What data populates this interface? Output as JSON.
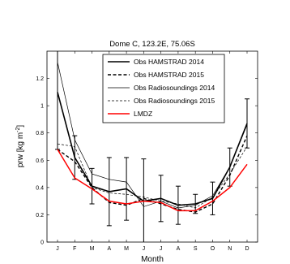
{
  "chart_data": {
    "type": "line",
    "title": "Dome C, 123.2E, 75.06S",
    "xlabel": "Month",
    "ylabel": "prw [kg m",
    "ylabel_sup": "-2",
    "ylabel_end": "]",
    "categories": [
      "J",
      "F",
      "M",
      "A",
      "M",
      "J",
      "J",
      "A",
      "S",
      "O",
      "N",
      "D"
    ],
    "ylim": [
      0,
      1.4
    ],
    "yticks": [
      "0",
      "0.2",
      "0.4",
      "0.6",
      "0.8",
      "1",
      "1.2"
    ],
    "legend_position": "top-center",
    "series": [
      {
        "name": "Obs HAMSTRAD 2014",
        "style": "thick-solid",
        "color": "#000000",
        "values": [
          1.1,
          0.62,
          0.41,
          0.37,
          0.39,
          0.3,
          0.32,
          0.27,
          0.28,
          0.32,
          0.55,
          0.87
        ],
        "err": [
          0.42,
          0.16,
          0.13,
          0.25,
          0.23,
          0.31,
          0.17,
          0.14,
          0.07,
          0.12,
          0.14,
          0.18
        ]
      },
      {
        "name": "Obs HAMSTRAD 2015",
        "style": "thick-dashed",
        "color": "#000000",
        "values": [
          0.68,
          0.59,
          0.4,
          0.29,
          0.27,
          0.32,
          0.28,
          0.24,
          0.22,
          0.28,
          0.49,
          0.78
        ]
      },
      {
        "name": "Obs Radiosoundings 2014",
        "style": "thin-solid",
        "color": "#000000",
        "values": [
          1.32,
          0.75,
          0.5,
          0.46,
          0.44,
          0.26,
          0.3,
          0.25,
          0.27,
          0.34,
          0.55,
          0.86
        ]
      },
      {
        "name": "Obs Radiosoundings 2015",
        "style": "thin-dashed",
        "color": "#000000",
        "values": [
          0.72,
          0.7,
          0.4,
          0.36,
          0.35,
          0.33,
          0.3,
          0.28,
          0.25,
          0.33,
          0.5,
          0.7
        ]
      },
      {
        "name": "LMDZ",
        "style": "red-solid",
        "color": "#ff0000",
        "values": [
          0.68,
          0.47,
          0.39,
          0.3,
          0.28,
          0.3,
          0.29,
          0.23,
          0.23,
          0.3,
          0.4,
          0.57
        ]
      }
    ]
  }
}
